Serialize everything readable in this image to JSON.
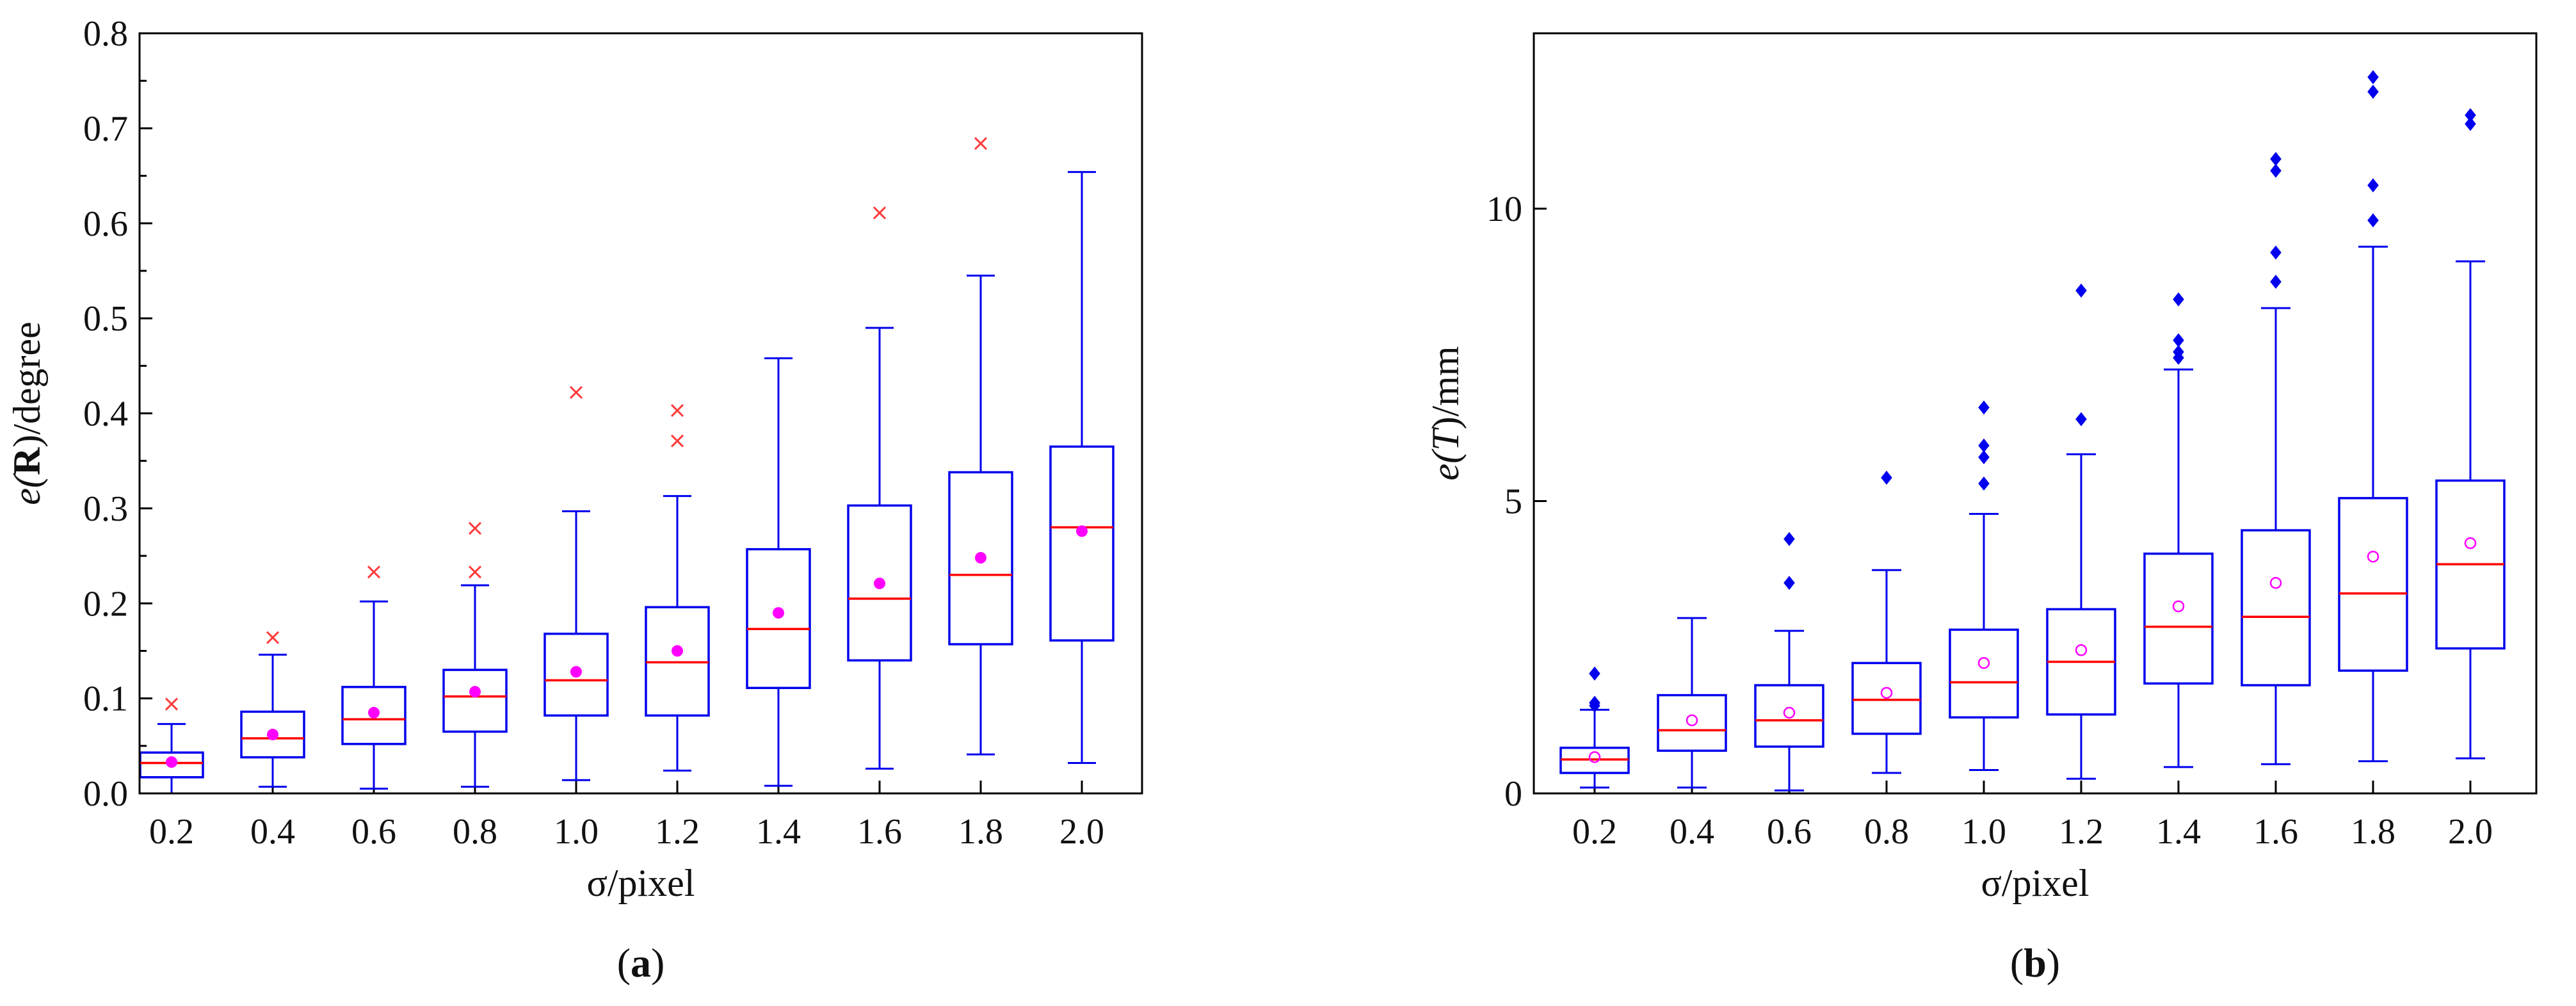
{
  "figure": {
    "colors": {
      "box": "#0000ee",
      "median": "#ff0000",
      "mean_a": "#ff00ff",
      "mean_b": "#ff00ff",
      "outlier_a": "#ff3b3b",
      "outlier_b": "#0000ee",
      "axis": "#000000"
    }
  },
  "chart_data": [
    {
      "id": "a",
      "type": "box",
      "caption_open": "(",
      "caption_letter": "a",
      "caption_close": ")",
      "xlabel": "σ/pixel",
      "ylabel_prefix": "e(",
      "ylabel_symbol": "R",
      "ylabel_suffix": ")/degree",
      "ylim": [
        0,
        0.8
      ],
      "yticks": [
        0.0,
        0.1,
        0.2,
        0.3,
        0.4,
        0.5,
        0.6,
        0.7,
        0.8
      ],
      "ytick_labels": [
        "0.0",
        "0.1",
        "0.2",
        "0.3",
        "0.4",
        "0.5",
        "0.6",
        "0.7",
        "0.8"
      ],
      "minor_ticks": true,
      "outlier_marker": "x",
      "mean_marker": "dot",
      "categories": [
        "0.2",
        "0.4",
        "0.6",
        "0.8",
        "1.0",
        "1.2",
        "1.4",
        "1.6",
        "1.8",
        "2.0"
      ],
      "boxes": [
        {
          "min": 0.0,
          "q1": 0.017,
          "median": 0.032,
          "q3": 0.043,
          "max": 0.073,
          "mean": 0.033,
          "outliers": [
            0.094
          ]
        },
        {
          "min": 0.007,
          "q1": 0.038,
          "median": 0.058,
          "q3": 0.086,
          "max": 0.146,
          "mean": 0.062,
          "outliers": [
            0.164
          ]
        },
        {
          "min": 0.005,
          "q1": 0.052,
          "median": 0.078,
          "q3": 0.112,
          "max": 0.202,
          "mean": 0.085,
          "outliers": [
            0.233
          ]
        },
        {
          "min": 0.007,
          "q1": 0.065,
          "median": 0.102,
          "q3": 0.13,
          "max": 0.219,
          "mean": 0.107,
          "outliers": [
            0.233,
            0.279
          ]
        },
        {
          "min": 0.014,
          "q1": 0.082,
          "median": 0.119,
          "q3": 0.168,
          "max": 0.297,
          "mean": 0.128,
          "outliers": [
            0.422
          ]
        },
        {
          "min": 0.024,
          "q1": 0.082,
          "median": 0.138,
          "q3": 0.196,
          "max": 0.313,
          "mean": 0.15,
          "outliers": [
            0.371,
            0.403
          ]
        },
        {
          "min": 0.008,
          "q1": 0.111,
          "median": 0.173,
          "q3": 0.257,
          "max": 0.458,
          "mean": 0.19,
          "outliers": []
        },
        {
          "min": 0.026,
          "q1": 0.14,
          "median": 0.205,
          "q3": 0.303,
          "max": 0.49,
          "mean": 0.221,
          "outliers": [
            0.611
          ]
        },
        {
          "min": 0.041,
          "q1": 0.157,
          "median": 0.23,
          "q3": 0.338,
          "max": 0.545,
          "mean": 0.248,
          "outliers": [
            0.684
          ]
        },
        {
          "min": 0.032,
          "q1": 0.161,
          "median": 0.28,
          "q3": 0.365,
          "max": 0.654,
          "mean": 0.276,
          "outliers": []
        }
      ]
    },
    {
      "id": "b",
      "type": "box",
      "caption_open": "(",
      "caption_letter": "b",
      "caption_close": ")",
      "xlabel": "σ/pixel",
      "ylabel_prefix": "e(",
      "ylabel_symbol": "T",
      "ylabel_suffix": ")/mm",
      "ylim": [
        0,
        13
      ],
      "yticks": [
        0,
        5,
        10
      ],
      "ytick_labels": [
        "0",
        "5",
        "10"
      ],
      "minor_ticks": false,
      "outlier_marker": "diamond",
      "mean_marker": "open-circle",
      "categories": [
        "0.2",
        "0.4",
        "0.6",
        "0.8",
        "1.0",
        "1.2",
        "1.4",
        "1.6",
        "1.8",
        "2.0"
      ],
      "boxes": [
        {
          "min": 0.1,
          "q1": 0.35,
          "median": 0.58,
          "q3": 0.78,
          "max": 1.43,
          "mean": 0.62,
          "outliers": [
            1.5,
            1.55,
            2.05
          ]
        },
        {
          "min": 0.1,
          "q1": 0.73,
          "median": 1.08,
          "q3": 1.68,
          "max": 3.0,
          "mean": 1.25,
          "outliers": []
        },
        {
          "min": 0.05,
          "q1": 0.8,
          "median": 1.25,
          "q3": 1.85,
          "max": 2.78,
          "mean": 1.38,
          "outliers": [
            3.6,
            4.35
          ]
        },
        {
          "min": 0.35,
          "q1": 1.02,
          "median": 1.6,
          "q3": 2.23,
          "max": 3.82,
          "mean": 1.72,
          "outliers": [
            5.4
          ]
        },
        {
          "min": 0.4,
          "q1": 1.3,
          "median": 1.9,
          "q3": 2.8,
          "max": 4.78,
          "mean": 2.23,
          "outliers": [
            5.3,
            5.75,
            5.95,
            6.6
          ]
        },
        {
          "min": 0.25,
          "q1": 1.35,
          "median": 2.25,
          "q3": 3.15,
          "max": 5.8,
          "mean": 2.45,
          "outliers": [
            6.4,
            8.6
          ]
        },
        {
          "min": 0.45,
          "q1": 1.88,
          "median": 2.85,
          "q3": 4.1,
          "max": 7.25,
          "mean": 3.2,
          "outliers": [
            7.45,
            7.55,
            7.75,
            8.45
          ]
        },
        {
          "min": 0.5,
          "q1": 1.85,
          "median": 3.02,
          "q3": 4.5,
          "max": 8.3,
          "mean": 3.6,
          "outliers": [
            8.75,
            9.25,
            10.65,
            10.85
          ]
        },
        {
          "min": 0.55,
          "q1": 2.1,
          "median": 3.42,
          "q3": 5.05,
          "max": 9.35,
          "mean": 4.05,
          "outliers": [
            9.8,
            10.4,
            12.0,
            12.25
          ]
        },
        {
          "min": 0.6,
          "q1": 2.48,
          "median": 3.92,
          "q3": 5.35,
          "max": 9.1,
          "mean": 4.28,
          "outliers": [
            11.45,
            11.6
          ]
        }
      ]
    }
  ]
}
